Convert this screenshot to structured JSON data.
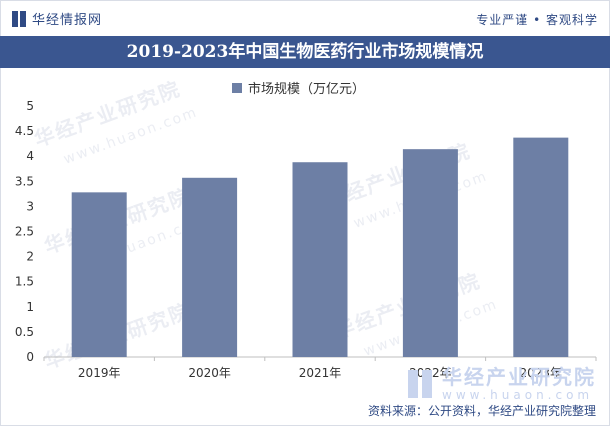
{
  "header": {
    "logo_text": "华经情报网",
    "slogan": "专业严谨 • 客观科学"
  },
  "chart_data": {
    "type": "bar",
    "title": "2019-2023年中国生物医药行业市场规模情况",
    "categories": [
      "2019年",
      "2020年",
      "2021年",
      "2022年",
      "2023年"
    ],
    "series": [
      {
        "name": "市场规模（万亿元）",
        "values": [
          3.28,
          3.57,
          3.88,
          4.14,
          4.37
        ]
      }
    ],
    "ylim": [
      0,
      5
    ],
    "yticks": [
      "0",
      "0.5",
      "1",
      "1.5",
      "2",
      "2.5",
      "3",
      "3.5",
      "4",
      "4.5",
      "5"
    ],
    "xlabel": "",
    "ylabel": "",
    "grid": false,
    "legend": "top-center",
    "bar_color": "#6d7fa5"
  },
  "footer": {
    "brand_cn": "华经产业研究院",
    "brand_url": "www.huaon.com",
    "source": "资料来源：公开资料，华经产业研究院整理"
  },
  "watermark": {
    "text": "华经产业研究院",
    "url": "www.huaon.com"
  },
  "colors": {
    "title_bar": "#3a5690",
    "accent": "#2f4a84"
  }
}
